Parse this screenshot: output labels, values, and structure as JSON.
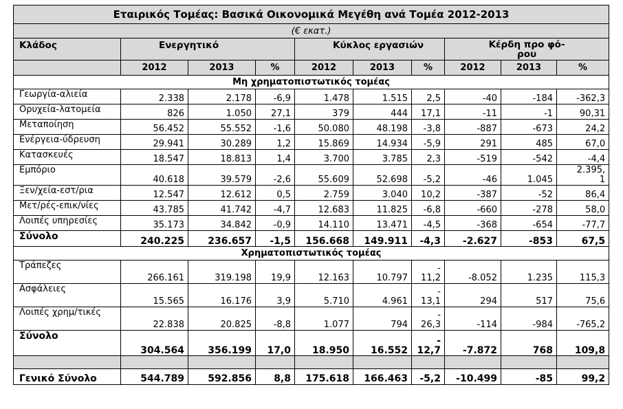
{
  "title": "Εταιρικός Τομέας: Βασικά Οικονομικά Μεγέθη ανά Τομέα 2012-2013",
  "unit": "(€ εκατ.)",
  "headers": {
    "sector": "Κλάδος",
    "assets": "Ενεργητικό",
    "turnover": "Κύκλος εργασιών",
    "profits": "Κέρδη προ φό-\nρου"
  },
  "years": [
    "2012",
    "2013",
    "%",
    "2012",
    "2013",
    "%",
    "2012",
    "2013",
    "%"
  ],
  "sections": [
    {
      "title": "Μη χρηματοπιστωτικός τομέας",
      "rows": [
        {
          "name": "Γεωργία-αλιεία",
          "values": [
            "2.338",
            "2.178",
            "-6,9",
            "1.478",
            "1.515",
            "2,5",
            "-40",
            "-184",
            "-362,3"
          ]
        },
        {
          "name": "Ορυχεία-λατομεία",
          "values": [
            "826",
            "1.050",
            "27,1",
            "379",
            "444",
            "17,1",
            "-11",
            "-1",
            "90,31"
          ]
        },
        {
          "name": "Μεταποίηση",
          "values": [
            "56.452",
            "55.552",
            "-1,6",
            "50.080",
            "48.198",
            "-3,8",
            "-887",
            "-673",
            "24,2"
          ]
        },
        {
          "name": "Ενέργεια-ύδρευση",
          "values": [
            "29.941",
            "30.289",
            "1,2",
            "15.869",
            "14.934",
            "-5,9",
            "291",
            "485",
            "67,0"
          ]
        },
        {
          "name": "Κατασκευές",
          "values": [
            "18.547",
            "18.813",
            "1,4",
            "3.700",
            "3.785",
            "2,3",
            "-519",
            "-542",
            "-4,4"
          ]
        },
        {
          "name": "Εμπόριο",
          "values": [
            "40.618",
            "39.579",
            "-2,6",
            "55.609",
            "52.698",
            "-5,2",
            "-46",
            "1.045",
            "2.395,\n1"
          ]
        },
        {
          "name": "Ξεν/χεία-εστ/ρια",
          "values": [
            "12.547",
            "12.612",
            "0,5",
            "2.759",
            "3.040",
            "10,2",
            "-387",
            "-52",
            "86,4"
          ]
        },
        {
          "name": "Μετ/ρές-επικ/νίες",
          "values": [
            "43.785",
            "41.742",
            "-4,7",
            "12.683",
            "11.825",
            "-6,8",
            "-660",
            "-278",
            "58,0"
          ]
        },
        {
          "name": "Λοιπές υπηρεσίες",
          "values": [
            "35.173",
            "34.842",
            "-0,9",
            "14.110",
            "13.471",
            "-4,5",
            "-368",
            "-654",
            "-77,7"
          ]
        }
      ],
      "total": {
        "name": "Σύνολο",
        "values": [
          "240.225",
          "236.657",
          "-1,5",
          "156.668",
          "149.911",
          "-4,3",
          "-2.627",
          "-853",
          "67,5"
        ]
      }
    },
    {
      "title": "Χρηματοπιστωτικός τομέας",
      "rows": [
        {
          "name": "Τράπεζες",
          "values": [
            "266.161",
            "319.198",
            "19,9",
            "12.163",
            "10.797",
            "-\n11,2",
            "-8.052",
            "1.235",
            "115,3"
          ]
        },
        {
          "name": "Ασφάλειες",
          "values": [
            "15.565",
            "16.176",
            "3,9",
            "5.710",
            "4.961",
            "-\n13,1",
            "294",
            "517",
            "75,6"
          ]
        },
        {
          "name": "Λοιπές χρημ/τικές",
          "values": [
            "22.838",
            "20.825",
            "-8,8",
            "1.077",
            "794",
            "-\n26,3",
            "-114",
            "-984",
            "-765,2"
          ]
        }
      ],
      "total": {
        "name": "Σύνολο",
        "values": [
          "304.564",
          "356.199",
          "17,0",
          "18.950",
          "16.552",
          "-\n12,7",
          "-7.872",
          "768",
          "109,8"
        ]
      }
    }
  ],
  "grand_total": {
    "name": "Γενικό Σύνολο",
    "values": [
      "544.789",
      "592.856",
      "8,8",
      "175.618",
      "166.463",
      "-5,2",
      "-10.499",
      "-85",
      "99,2"
    ]
  }
}
